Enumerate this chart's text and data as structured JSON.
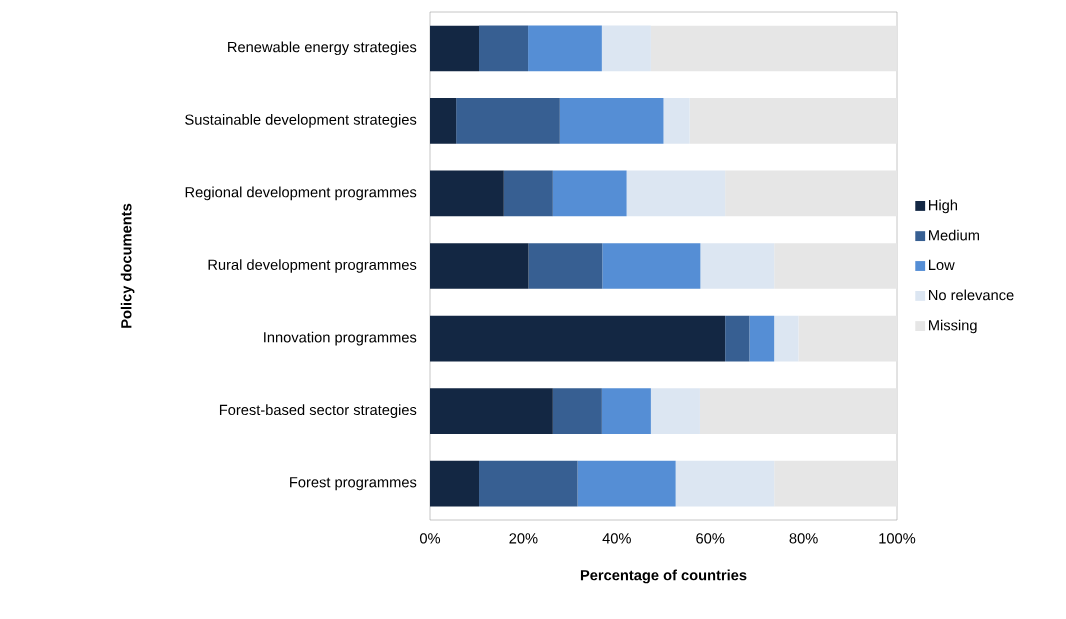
{
  "chart_data": {
    "type": "bar",
    "orientation": "horizontal",
    "stacked": true,
    "xlabel": "Percentage of countries",
    "ylabel": "Policy documents",
    "categories": [
      "Renewable energy strategies",
      "Sustainable development strategies",
      "Regional development programmes",
      "Rural development programmes",
      "Innovation programmes",
      "Forest-based sector strategies",
      "Forest programmes"
    ],
    "series": [
      {
        "name": "High",
        "color": "#132743",
        "values": [
          10.5,
          5.6,
          15.8,
          21.1,
          63.2,
          26.3,
          10.5
        ]
      },
      {
        "name": "Medium",
        "color": "#375f92",
        "values": [
          10.5,
          22.2,
          10.5,
          15.8,
          5.2,
          10.5,
          21.1
        ]
      },
      {
        "name": "Low",
        "color": "#558ed5",
        "values": [
          15.8,
          22.2,
          15.8,
          21.0,
          5.3,
          10.5,
          21.0
        ]
      },
      {
        "name": "No relevance",
        "color": "#dce6f2",
        "values": [
          10.5,
          5.6,
          21.1,
          15.8,
          5.2,
          10.5,
          21.1
        ]
      },
      {
        "name": "Missing",
        "color": "#e6e6e6",
        "values": [
          52.6,
          44.4,
          36.8,
          26.3,
          21.1,
          42.1,
          26.3
        ]
      }
    ],
    "xlim": [
      0,
      100
    ],
    "xticks": [
      {
        "value": 0,
        "label": "0%"
      },
      {
        "value": 20,
        "label": "20%"
      },
      {
        "value": 40,
        "label": "40%"
      },
      {
        "value": 60,
        "label": "60%"
      },
      {
        "value": 80,
        "label": "80%"
      },
      {
        "value": 100,
        "label": "100%"
      }
    ],
    "legend": "right",
    "grid": false
  }
}
